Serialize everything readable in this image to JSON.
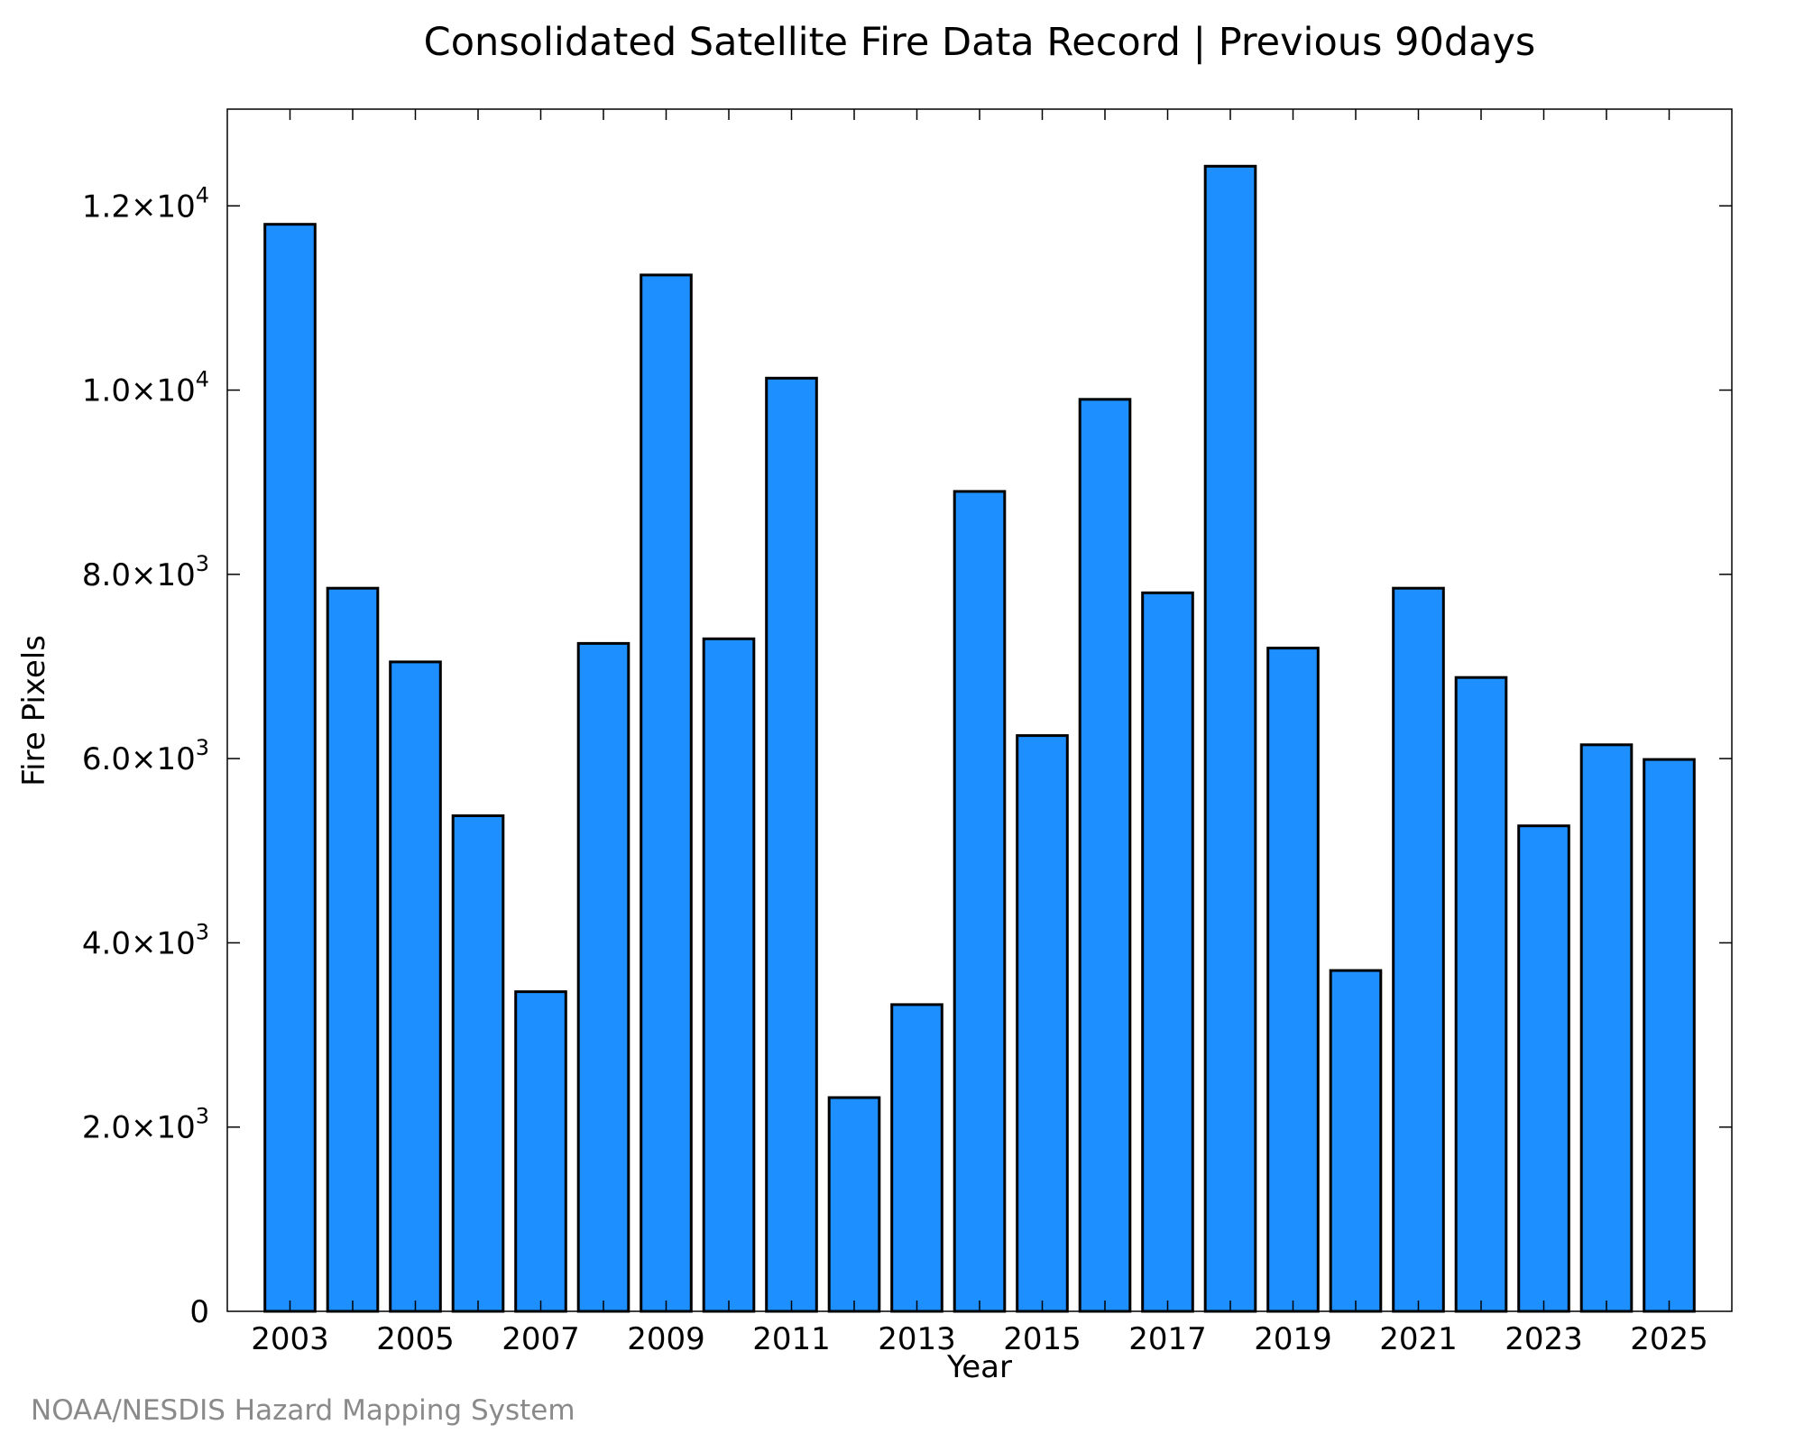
{
  "chart_data": {
    "type": "bar",
    "title": "Consolidated Satellite Fire Data Record | Previous 90days",
    "xlabel": "Year",
    "ylabel": "Fire Pixels",
    "categories": [
      2003,
      2004,
      2005,
      2006,
      2007,
      2008,
      2009,
      2010,
      2011,
      2012,
      2013,
      2014,
      2015,
      2016,
      2017,
      2018,
      2019,
      2020,
      2021,
      2022,
      2023,
      2024,
      2025
    ],
    "values": [
      11800,
      7850,
      7050,
      5380,
      3470,
      7250,
      11250,
      7300,
      10130,
      2320,
      3330,
      8900,
      6250,
      9900,
      7800,
      12430,
      7200,
      3700,
      7850,
      6880,
      5270,
      6150,
      5990
    ],
    "xlim": [
      2002,
      2026
    ],
    "ylim": [
      0,
      13050
    ],
    "x_tick_labels": [
      "2003",
      "2005",
      "2007",
      "2009",
      "2011",
      "2013",
      "2015",
      "2017",
      "2019",
      "2021",
      "2023",
      "2025"
    ],
    "y_ticks": [
      {
        "value": 0,
        "mantissa": "0",
        "exponent": ""
      },
      {
        "value": 2000,
        "mantissa": "2.0×10",
        "exponent": "3"
      },
      {
        "value": 4000,
        "mantissa": "4.0×10",
        "exponent": "3"
      },
      {
        "value": 6000,
        "mantissa": "6.0×10",
        "exponent": "3"
      },
      {
        "value": 8000,
        "mantissa": "8.0×10",
        "exponent": "3"
      },
      {
        "value": 10000,
        "mantissa": "1.0×10",
        "exponent": "4"
      },
      {
        "value": 12000,
        "mantissa": "1.2×10",
        "exponent": "4"
      }
    ],
    "bar_color": "#1e8fff",
    "bar_edge_color": "#000000",
    "grid": false,
    "legend": "none"
  },
  "footer": {
    "source": "NOAA/NESDIS Hazard Mapping System"
  }
}
